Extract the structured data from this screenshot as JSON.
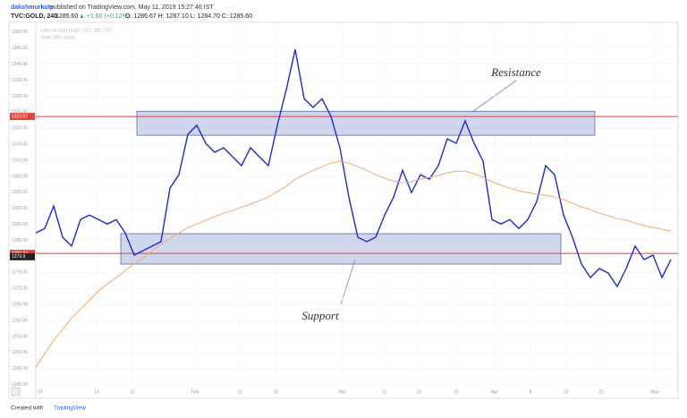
{
  "header": {
    "publisher": "dakshmurkute",
    "published": "published on TradingView.com, May 11, 2019 15:27:46 IST",
    "symbol": "TVC:GOLD, 240",
    "last": "1285.60",
    "change": "▲ +1.60 (+0.12%)",
    "ohlc": "O: 1286.67 H: 1287.10 L: 1284.70 C: 1285.60",
    "legend": [
      "Ultra on Gold (USD / OZ), 240, TVC",
      "SMA (200, close)"
    ]
  },
  "chart_data": {
    "type": "line",
    "series": [
      {
        "name": "TVC:GOLD",
        "color": "#1c2bd0",
        "values": [
          1287.3,
          1288.7,
          1295.7,
          1286.0,
          1283.2,
          1291.5,
          1292.9,
          1291.5,
          1290.1,
          1291.5,
          1287.3,
          1280.4,
          1281.8,
          1283.2,
          1284.6,
          1301.3,
          1305.5,
          1318.1,
          1320.9,
          1315.3,
          1312.5,
          1313.9,
          1311.1,
          1308.3,
          1313.9,
          1311.1,
          1308.3,
          1320.9,
          1332.0,
          1344.6,
          1329.2,
          1326.5,
          1329.2,
          1323.7,
          1313.9,
          1298.5,
          1286.0,
          1284.6,
          1286.0,
          1292.9,
          1298.5,
          1306.9,
          1299.9,
          1305.5,
          1304.1,
          1308.3,
          1316.7,
          1315.3,
          1322.3,
          1315.3,
          1309.7,
          1291.5,
          1290.1,
          1291.5,
          1288.7,
          1291.5,
          1297.1,
          1308.3,
          1305.5,
          1292.9,
          1286.0,
          1277.6,
          1273.4,
          1276.2,
          1274.8,
          1270.6,
          1276.2,
          1283.2,
          1279.0,
          1280.4,
          1273.4,
          1279.0
        ]
      },
      {
        "name": "SMA (200, close)",
        "color": "#f5a86a",
        "values": [
          1245.4,
          1249.6,
          1253.8,
          1257.2,
          1260.8,
          1263.6,
          1266.4,
          1269.2,
          1271.4,
          1273.4,
          1275.6,
          1277.6,
          1279.5,
          1281.8,
          1283.7,
          1285.7,
          1287.3,
          1289.0,
          1290.1,
          1291.3,
          1292.4,
          1293.5,
          1294.3,
          1295.4,
          1296.3,
          1297.4,
          1298.5,
          1300.2,
          1301.9,
          1304.1,
          1305.5,
          1306.9,
          1308.0,
          1309.1,
          1309.7,
          1309.1,
          1308.0,
          1306.9,
          1305.5,
          1304.4,
          1303.5,
          1303.0,
          1303.3,
          1304.1,
          1304.7,
          1305.2,
          1306.1,
          1306.6,
          1306.6,
          1305.8,
          1304.7,
          1303.3,
          1302.2,
          1301.3,
          1300.5,
          1299.9,
          1299.4,
          1299.1,
          1298.5,
          1297.7,
          1296.6,
          1295.4,
          1294.6,
          1293.5,
          1292.7,
          1291.8,
          1291.3,
          1290.4,
          1289.6,
          1289.0,
          1288.5,
          1287.9
        ]
      }
    ],
    "xlim": [
      0,
      71
    ],
    "xticks": [
      {
        "value": 0.5,
        "label": "29"
      },
      {
        "value": 6.8,
        "label": "14"
      },
      {
        "value": 10.8,
        "label": "21"
      },
      {
        "value": 17.8,
        "label": "Feb"
      },
      {
        "value": 22.8,
        "label": "11"
      },
      {
        "value": 26.8,
        "label": "18"
      },
      {
        "value": 34.3,
        "label": "Mar"
      },
      {
        "value": 39,
        "label": "11"
      },
      {
        "value": 42.8,
        "label": "18"
      },
      {
        "value": 47,
        "label": "25"
      },
      {
        "value": 51.3,
        "label": "Apr"
      },
      {
        "value": 55.3,
        "label": "8"
      },
      {
        "value": 59.3,
        "label": "15"
      },
      {
        "value": 63.2,
        "label": "22"
      },
      {
        "value": 69.2,
        "label": "May"
      }
    ],
    "ylim": [
      1238.5,
      1352.2
    ],
    "yticks": [
      {
        "value": 1240,
        "label": "1240.00"
      },
      {
        "value": 1245,
        "label": "1245.00"
      },
      {
        "value": 1250,
        "label": "1250.00"
      },
      {
        "value": 1255,
        "label": "1255.00"
      },
      {
        "value": 1260,
        "label": "1260.00"
      },
      {
        "value": 1265,
        "label": "1265.00"
      },
      {
        "value": 1270,
        "label": "1270.00"
      },
      {
        "value": 1275,
        "label": "1275.00"
      },
      {
        "value": 1280,
        "label": "1280.00"
      },
      {
        "value": 1285,
        "label": "1285.00"
      },
      {
        "value": 1290,
        "label": "1290.00"
      },
      {
        "value": 1295,
        "label": "1295.00"
      },
      {
        "value": 1300,
        "label": "1300.00"
      },
      {
        "value": 1305,
        "label": "1305.00"
      },
      {
        "value": 1310,
        "label": "1310.00"
      },
      {
        "value": 1315,
        "label": "1315.00"
      },
      {
        "value": 1320,
        "label": "1320.00"
      },
      {
        "value": 1325,
        "label": "1325.00"
      },
      {
        "value": 1330,
        "label": "1330.00"
      },
      {
        "value": 1335,
        "label": "1335.00"
      },
      {
        "value": 1340,
        "label": "1340.00"
      },
      {
        "value": 1345,
        "label": "1345.00"
      },
      {
        "value": 1350,
        "label": "1350.00"
      }
    ],
    "grid": true,
    "hlines": [
      {
        "value": 1323.67,
        "color": "#e0453a"
      },
      {
        "value": 1280.94,
        "color": "#e0453a"
      }
    ],
    "price_labels": [
      {
        "value": 1323.67,
        "color": "#e0453a"
      },
      {
        "value": 1280.94,
        "color": "#e0453a"
      },
      {
        "value": 1279.9,
        "color": "#222222"
      }
    ],
    "zones": [
      {
        "name": "Resistance",
        "ylim": [
          1317.8,
          1325.3
        ],
        "xlim": [
          11.3,
          62.5
        ]
      },
      {
        "name": "Support",
        "ylim": [
          1277.6,
          1287.1
        ],
        "xlim": [
          9.5,
          58.7
        ]
      }
    ]
  },
  "footer": {
    "text": "Created with",
    "brand": "TradingView"
  }
}
